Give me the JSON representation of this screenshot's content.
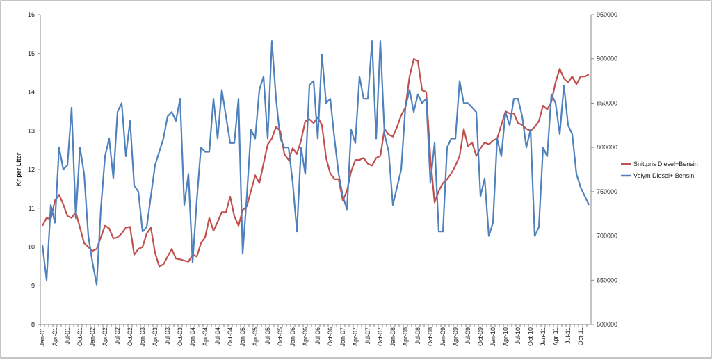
{
  "chart_data": {
    "type": "line",
    "title": "",
    "xlabel": "",
    "ylabel": "Kr per Liter",
    "y2label": "",
    "ylim": [
      8,
      16
    ],
    "y2lim": [
      600000,
      950000
    ],
    "yticks": [
      "8",
      "9",
      "10",
      "11",
      "12",
      "13",
      "14",
      "15",
      "16"
    ],
    "y2ticks": [
      "600000",
      "650000",
      "700000",
      "750000",
      "800000",
      "850000",
      "900000",
      "950000"
    ],
    "grid": false,
    "legend_position": "right",
    "colors": {
      "price": "#c0504d",
      "volume": "#4f81bd"
    },
    "x": [
      "Jan-01",
      "Feb-01",
      "Mar-01",
      "Apr-01",
      "May-01",
      "Jun-01",
      "Jul-01",
      "Aug-01",
      "Sep-01",
      "Oct-01",
      "Nov-01",
      "Dec-01",
      "Jan-02",
      "Feb-02",
      "Mar-02",
      "Apr-02",
      "May-02",
      "Jun-02",
      "Jul-02",
      "Aug-02",
      "Sep-02",
      "Oct-02",
      "Nov-02",
      "Dec-02",
      "Jan-03",
      "Feb-03",
      "Mar-03",
      "Apr-03",
      "May-03",
      "Jun-03",
      "Jul-03",
      "Aug-03",
      "Sep-03",
      "Oct-03",
      "Nov-03",
      "Dec-03",
      "Jan-04",
      "Feb-04",
      "Mar-04",
      "Apr-04",
      "May-04",
      "Jun-04",
      "Jul-04",
      "Aug-04",
      "Sep-04",
      "Oct-04",
      "Nov-04",
      "Dec-04",
      "Jan-05",
      "Feb-05",
      "Mar-05",
      "Apr-05",
      "May-05",
      "Jun-05",
      "Jul-05",
      "Aug-05",
      "Sep-05",
      "Oct-05",
      "Nov-05",
      "Dec-05",
      "Jan-06",
      "Feb-06",
      "Mar-06",
      "Apr-06",
      "May-06",
      "Jun-06",
      "Jul-06",
      "Aug-06",
      "Sep-06",
      "Oct-06",
      "Nov-06",
      "Dec-06",
      "Jan-07",
      "Feb-07",
      "Mar-07",
      "Apr-07",
      "May-07",
      "Jun-07",
      "Jul-07",
      "Aug-07",
      "Sep-07",
      "Oct-07",
      "Nov-07",
      "Dec-07",
      "Jan-08",
      "Feb-08",
      "Mar-08",
      "Apr-08",
      "May-08",
      "Jun-08",
      "Jul-08",
      "Aug-08",
      "Sep-08",
      "Oct-08",
      "Nov-08",
      "Dec-08",
      "Jan-09",
      "Feb-09",
      "Mar-09",
      "Apr-09",
      "May-09",
      "Jun-09",
      "Jul-09",
      "Aug-09",
      "Sep-09",
      "Oct-09",
      "Nov-09",
      "Dec-09",
      "Jan-10",
      "Feb-10",
      "Mar-10",
      "Apr-10",
      "May-10",
      "Jun-10",
      "Jul-10",
      "Aug-10",
      "Sep-10",
      "Oct-10",
      "Nov-10",
      "Dec-10",
      "Jan-11",
      "Feb-11",
      "Mar-11",
      "Apr-11",
      "May-11",
      "Jun-11",
      "Jul-11",
      "Aug-11",
      "Sep-11",
      "Oct-11",
      "Nov-11",
      "Dec-11"
    ],
    "x_tick_labels": [
      "Jan-01",
      "Apr-01",
      "Jul-01",
      "Oct-01",
      "Jan-02",
      "Apr-02",
      "Jul-02",
      "Oct-02",
      "Jan-03",
      "Apr-03",
      "Jul-03",
      "Oct-03",
      "Jan-04",
      "Apr-04",
      "Jul-04",
      "Oct-04",
      "Jan-05",
      "Apr-05",
      "Jul-05",
      "Oct-05",
      "Jan-06",
      "Apr-06",
      "Jul-06",
      "Oct-06",
      "Jan-07",
      "Apr-07",
      "Jul-07",
      "Oct-07",
      "Jan-08",
      "Apr-08",
      "Jul-08",
      "Oct-08",
      "Jan-09",
      "Apr-09",
      "Jul-09",
      "Oct-09",
      "Jan-10",
      "Apr-10",
      "Jul-10",
      "Oct-10",
      "Jan-11",
      "Apr-11",
      "Jul-11",
      "Oct-11"
    ],
    "series": [
      {
        "name": "Snittpris Diesel+Bensin",
        "axis": "left",
        "values": [
          10.55,
          10.75,
          10.72,
          11.2,
          11.35,
          11.1,
          10.8,
          10.75,
          10.9,
          10.5,
          10.1,
          10.0,
          9.9,
          9.95,
          10.25,
          10.55,
          10.48,
          10.22,
          10.25,
          10.35,
          10.5,
          10.52,
          9.8,
          9.95,
          10.0,
          10.35,
          10.5,
          9.85,
          9.5,
          9.55,
          9.75,
          9.95,
          9.7,
          9.68,
          9.65,
          9.62,
          9.8,
          9.75,
          10.1,
          10.25,
          10.75,
          10.42,
          10.65,
          10.9,
          10.9,
          11.3,
          10.8,
          10.55,
          10.95,
          11.05,
          11.45,
          11.85,
          11.65,
          12.15,
          12.65,
          12.8,
          13.1,
          13.0,
          12.4,
          12.25,
          12.55,
          12.4,
          12.75,
          13.25,
          13.3,
          13.2,
          13.35,
          13.15,
          12.3,
          11.9,
          11.75,
          11.75,
          11.2,
          11.45,
          11.95,
          12.25,
          12.25,
          12.3,
          12.15,
          12.1,
          12.3,
          12.35,
          13.05,
          12.9,
          12.85,
          13.1,
          13.4,
          13.6,
          14.4,
          14.85,
          14.8,
          14.05,
          14.0,
          12.3,
          11.15,
          11.45,
          11.65,
          11.75,
          11.9,
          12.1,
          12.35,
          13.05,
          12.6,
          12.7,
          12.35,
          12.55,
          12.7,
          12.65,
          12.75,
          12.8,
          13.15,
          13.5,
          13.45,
          13.45,
          13.2,
          13.15,
          13.05,
          13.0,
          13.1,
          13.25,
          13.65,
          13.55,
          13.75,
          14.25,
          14.6,
          14.35,
          14.25,
          14.4,
          14.2,
          14.4,
          14.4,
          14.45
        ]
      },
      {
        "name": "Volym Diesel+ Bensin",
        "axis": "right",
        "values": [
          690000,
          650000,
          735000,
          715000,
          800000,
          775000,
          780000,
          845000,
          720000,
          800000,
          770000,
          700000,
          670000,
          645000,
          730000,
          790000,
          810000,
          765000,
          840000,
          850000,
          790000,
          830000,
          757000,
          750000,
          705000,
          710000,
          745000,
          780000,
          795000,
          810000,
          835000,
          840000,
          830000,
          855000,
          735000,
          770000,
          670000,
          740000,
          800000,
          795000,
          795000,
          855000,
          810000,
          865000,
          835000,
          805000,
          805000,
          855000,
          680000,
          745000,
          820000,
          810000,
          865000,
          880000,
          810000,
          920000,
          855000,
          810000,
          800000,
          800000,
          760000,
          705000,
          800000,
          770000,
          870000,
          875000,
          810000,
          905000,
          850000,
          855000,
          810000,
          770000,
          745000,
          730000,
          820000,
          805000,
          880000,
          855000,
          855000,
          920000,
          810000,
          920000,
          815000,
          795000,
          735000,
          755000,
          775000,
          845000,
          865000,
          840000,
          860000,
          850000,
          855000,
          760000,
          805000,
          705000,
          705000,
          800000,
          810000,
          810000,
          875000,
          850000,
          850000,
          845000,
          840000,
          745000,
          765000,
          700000,
          715000,
          810000,
          790000,
          840000,
          825000,
          855000,
          855000,
          835000,
          800000,
          820000,
          700000,
          710000,
          800000,
          790000,
          860000,
          850000,
          815000,
          870000,
          825000,
          815000,
          770000,
          755000,
          745000,
          735000
        ]
      }
    ]
  }
}
